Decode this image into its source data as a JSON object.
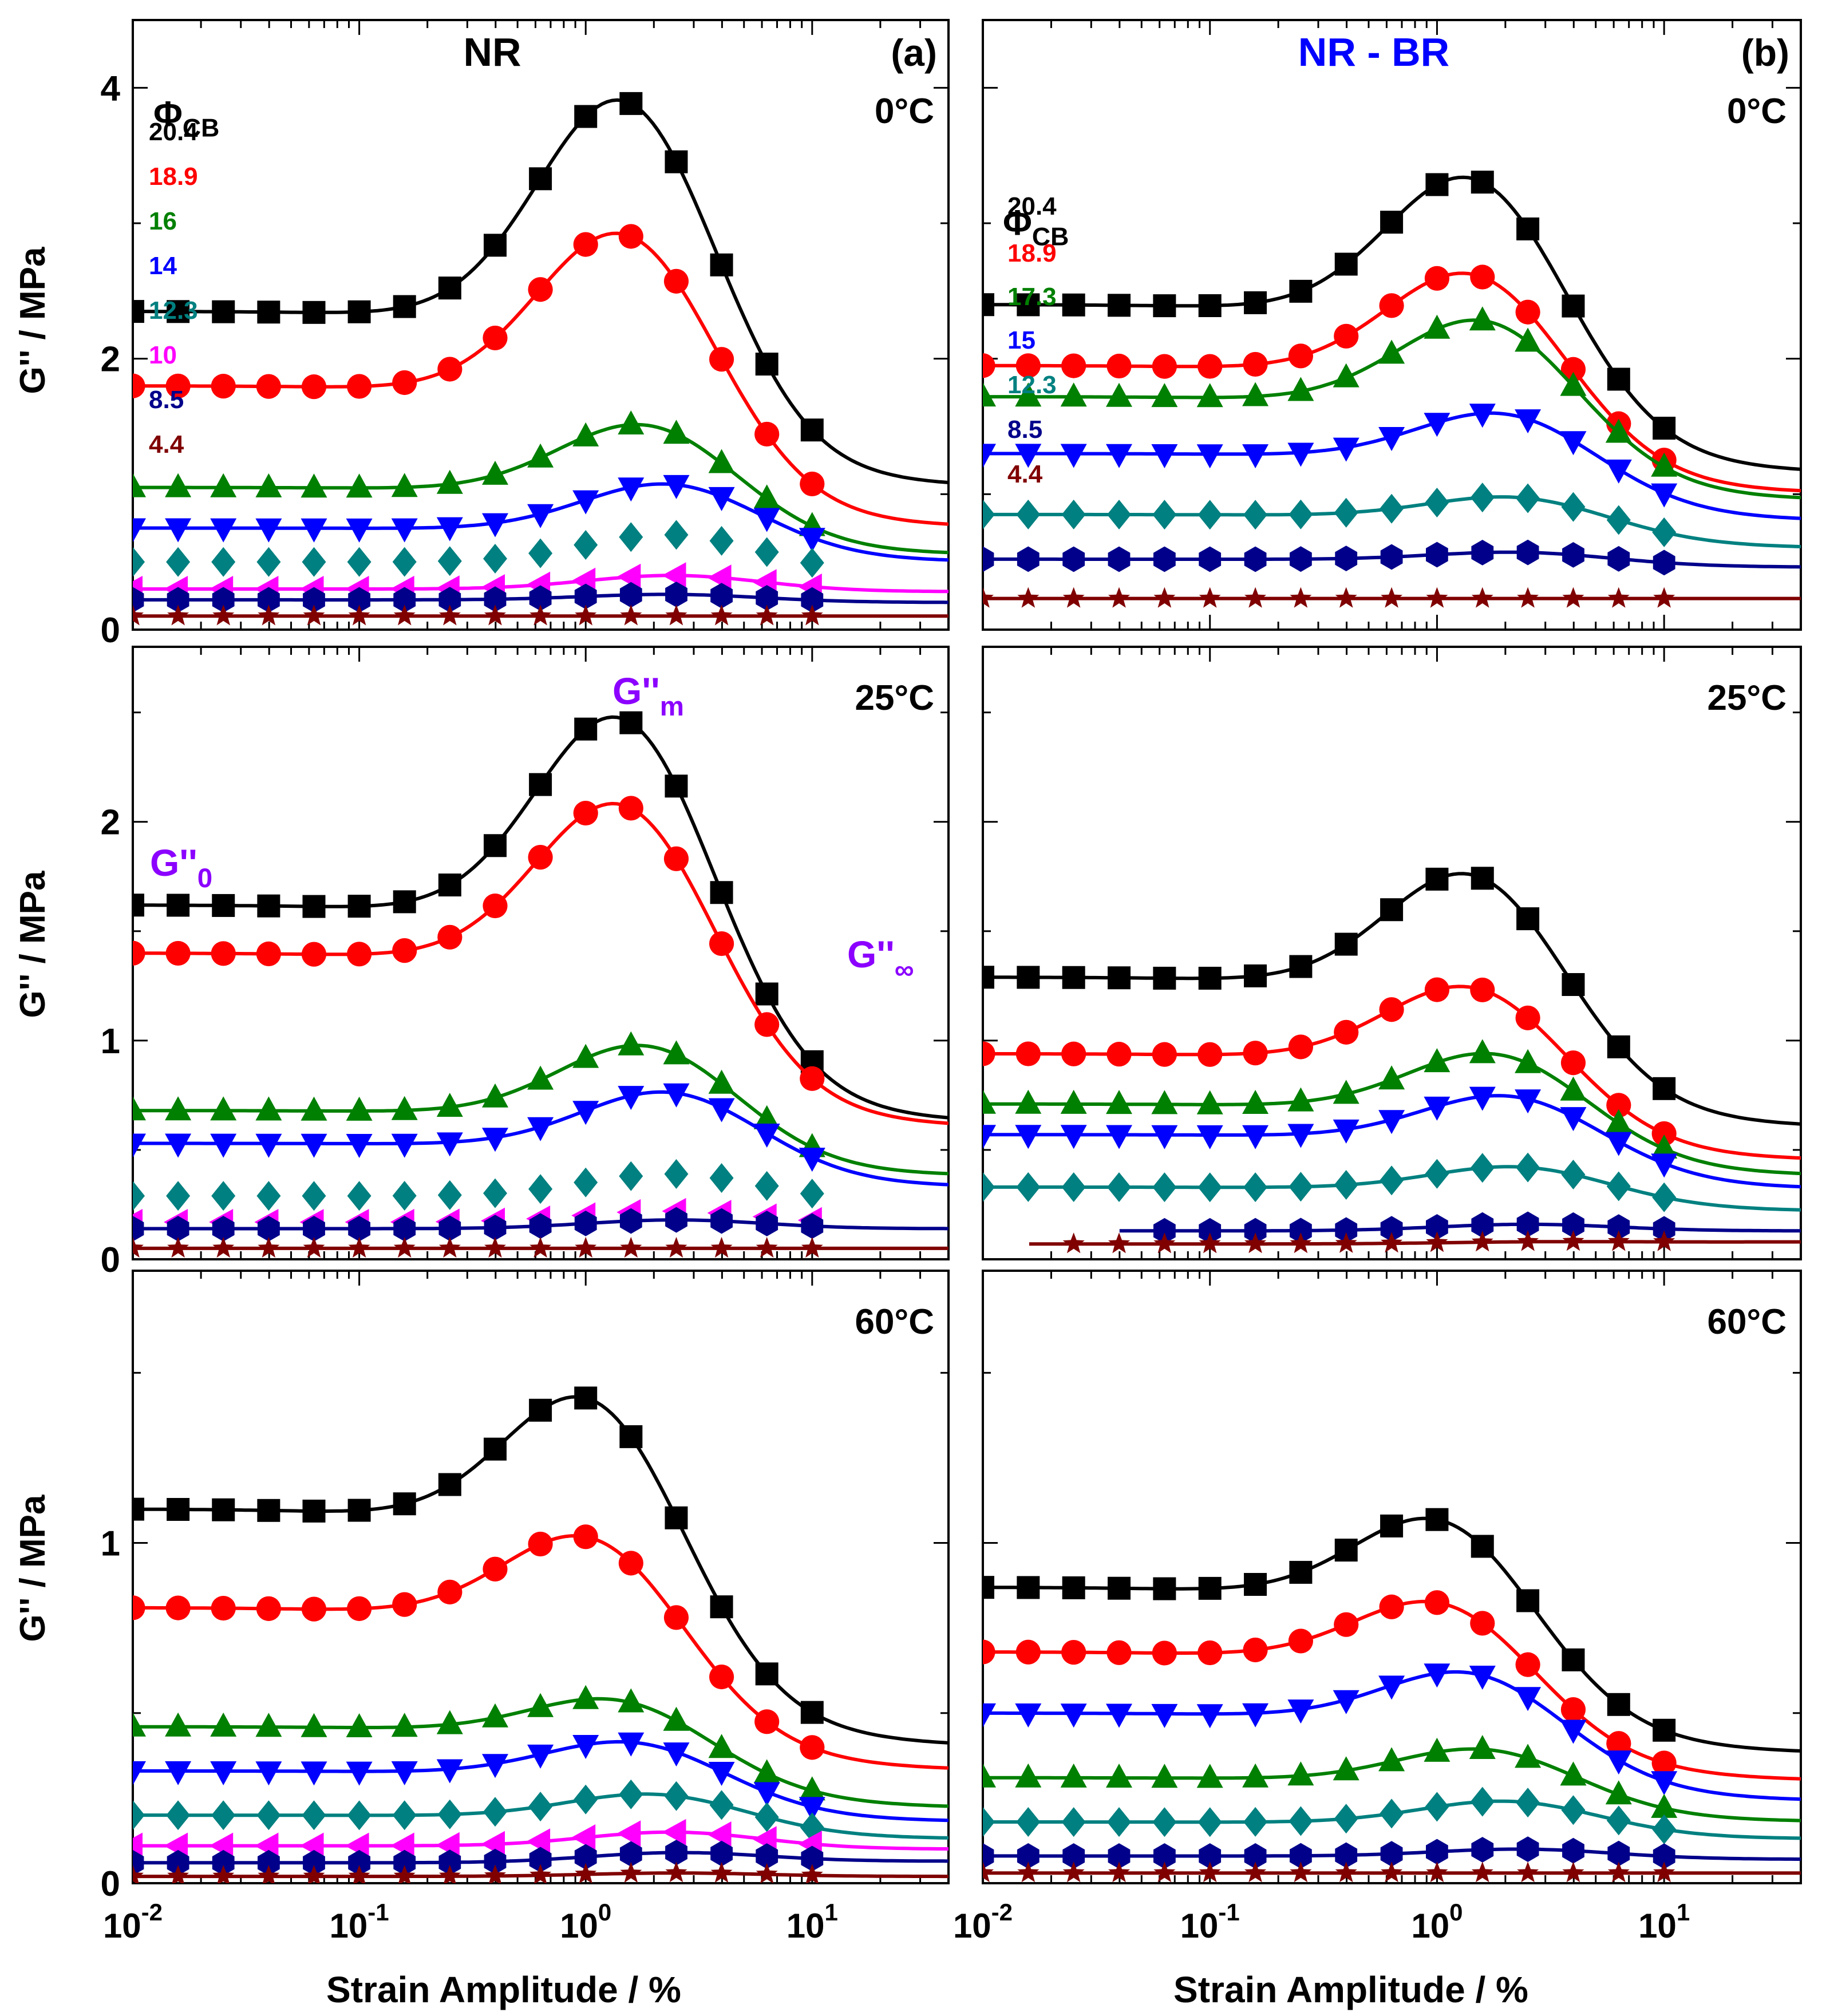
{
  "figure": {
    "y_axis_label": "G'' / MPa",
    "x_axis_label": "Strain Amplitude / %",
    "x_ticks": [
      {
        "value": 0.01,
        "base": "10",
        "exp": "-2"
      },
      {
        "value": 0.1,
        "base": "10",
        "exp": "-1"
      },
      {
        "value": 1,
        "base": "10",
        "exp": "0"
      },
      {
        "value": 10,
        "base": "10",
        "exp": "1"
      }
    ],
    "phi_label": "Φ",
    "phi_sub": "CB"
  },
  "series_styles": {
    "20.4": {
      "color": "#000000",
      "marker": "square"
    },
    "18.9": {
      "color": "#ff0000",
      "marker": "circle"
    },
    "17.3": {
      "color": "#008000",
      "marker": "triangle-up"
    },
    "16": {
      "color": "#008000",
      "marker": "triangle-up"
    },
    "15": {
      "color": "#0000ff",
      "marker": "triangle-down"
    },
    "14": {
      "color": "#0000ff",
      "marker": "triangle-down"
    },
    "12.3": {
      "color": "#008080",
      "marker": "diamond"
    },
    "10": {
      "color": "#ff00ff",
      "marker": "triangle-left"
    },
    "8.5": {
      "color": "#00008b",
      "marker": "hexagon"
    },
    "4.4": {
      "color": "#800000",
      "marker": "star"
    }
  },
  "panels": {
    "nr0": {
      "title": "NR",
      "tag": "(a)",
      "temp": "0°C",
      "ylim": [
        0,
        4.5
      ],
      "yticks": [
        0,
        2,
        4
      ],
      "series": [
        {
          "phi": "20.4",
          "g0": 2.35,
          "gm": 3.88,
          "ginf": 1.05,
          "xp": 1.6
        },
        {
          "phi": "18.9",
          "g0": 1.8,
          "gm": 2.9,
          "ginf": 0.75,
          "xp": 1.6
        },
        {
          "phi": "16",
          "g0": 1.05,
          "gm": 1.5,
          "ginf": 0.55,
          "xp": 2.0
        },
        {
          "phi": "14",
          "g0": 0.75,
          "gm": 1.07,
          "ginf": 0.5,
          "xp": 2.5
        },
        {
          "phi": "12.3",
          "g0": 0.5,
          "gm": 0.7,
          "ginf": 0.4,
          "xp": 2.5,
          "no_line": true
        },
        {
          "phi": "10",
          "g0": 0.3,
          "gm": 0.4,
          "ginf": 0.28,
          "xp": 2.5
        },
        {
          "phi": "8.5",
          "g0": 0.22,
          "gm": 0.26,
          "ginf": 0.2,
          "xp": 2.5
        },
        {
          "phi": "4.4",
          "g0": 0.1,
          "gm": 0.1,
          "ginf": 0.1,
          "xp": 2.5
        }
      ],
      "legend": [
        "20.4",
        "18.9",
        "16",
        "14",
        "12.3",
        "10",
        "8.5",
        "4.4"
      ]
    },
    "nrbr0": {
      "title": "NR - BR",
      "tag": "(b)",
      "temp": "0°C",
      "ylim": [
        0,
        4.5
      ],
      "yticks": [
        0,
        2,
        4
      ],
      "series": [
        {
          "phi": "20.4",
          "g0": 2.4,
          "gm": 3.3,
          "ginf": 1.15,
          "xp": 1.6
        },
        {
          "phi": "18.9",
          "g0": 1.95,
          "gm": 2.6,
          "ginf": 1.0,
          "xp": 1.6
        },
        {
          "phi": "17.3",
          "g0": 1.72,
          "gm": 2.26,
          "ginf": 0.95,
          "xp": 1.8
        },
        {
          "phi": "15",
          "g0": 1.3,
          "gm": 1.58,
          "ginf": 0.8,
          "xp": 2.2
        },
        {
          "phi": "12.3",
          "g0": 0.85,
          "gm": 0.97,
          "ginf": 0.6,
          "xp": 2.5
        },
        {
          "phi": "8.5",
          "g0": 0.52,
          "gm": 0.57,
          "ginf": 0.46,
          "xp": 2.5
        },
        {
          "phi": "4.4",
          "g0": 0.23,
          "gm": 0.23,
          "ginf": 0.23,
          "xp": 2.5
        }
      ],
      "legend": [
        "20.4",
        "18.9",
        "17.3",
        "15",
        "12.3",
        "8.5",
        "4.4"
      ]
    },
    "nr25": {
      "temp": "25°C",
      "ylim": [
        0,
        2.8
      ],
      "yticks": [
        0,
        1,
        2
      ],
      "g0_label": "G''",
      "g0_sub": "0",
      "gm_label": "G''",
      "gm_sub": "m",
      "ginf_label": "G''",
      "ginf_sub": "∞",
      "series": [
        {
          "phi": "20.4",
          "g0": 1.62,
          "gm": 2.45,
          "ginf": 0.62,
          "xp": 1.6
        },
        {
          "phi": "18.9",
          "g0": 1.4,
          "gm": 2.06,
          "ginf": 0.6,
          "xp": 1.6
        },
        {
          "phi": "16",
          "g0": 0.68,
          "gm": 0.97,
          "ginf": 0.38,
          "xp": 2.0
        },
        {
          "phi": "14",
          "g0": 0.53,
          "gm": 0.76,
          "ginf": 0.33,
          "xp": 2.5
        },
        {
          "phi": "12.3",
          "g0": 0.29,
          "gm": 0.39,
          "ginf": 0.26,
          "xp": 2.5,
          "no_line": true
        },
        {
          "phi": "10",
          "g0": 0.17,
          "gm": 0.22,
          "ginf": 0.16,
          "xp": 2.5,
          "no_line": true
        },
        {
          "phi": "8.5",
          "g0": 0.14,
          "gm": 0.18,
          "ginf": 0.14,
          "xp": 2.5
        },
        {
          "phi": "4.4",
          "g0": 0.05,
          "gm": 0.05,
          "ginf": 0.05,
          "xp": 2.5
        }
      ]
    },
    "nrbr25": {
      "temp": "25°C",
      "ylim": [
        0,
        2.8
      ],
      "yticks": [
        0,
        1,
        2
      ],
      "series": [
        {
          "phi": "20.4",
          "g0": 1.29,
          "gm": 1.74,
          "ginf": 0.6,
          "xp": 1.6
        },
        {
          "phi": "18.9",
          "g0": 0.94,
          "gm": 1.23,
          "ginf": 0.45,
          "xp": 1.6
        },
        {
          "phi": "17.3",
          "g0": 0.71,
          "gm": 0.93,
          "ginf": 0.38,
          "xp": 2.0
        },
        {
          "phi": "15",
          "g0": 0.57,
          "gm": 0.74,
          "ginf": 0.32,
          "xp": 2.3
        },
        {
          "phi": "12.3",
          "g0": 0.33,
          "gm": 0.42,
          "ginf": 0.22,
          "xp": 2.5
        },
        {
          "phi": "8.5",
          "g0": 0.13,
          "gm": 0.16,
          "ginf": 0.13,
          "xp": 2.5,
          "xstart": 0.04
        },
        {
          "phi": "4.4",
          "g0": 0.07,
          "gm": 0.08,
          "ginf": 0.08,
          "xp": 2.5,
          "xstart": 0.016,
          "xend": 45
        }
      ]
    },
    "nr60": {
      "temp": "60°C",
      "ylim": [
        0,
        1.8
      ],
      "yticks": [
        0,
        1
      ],
      "series": [
        {
          "phi": "20.4",
          "g0": 1.1,
          "gm": 1.4,
          "ginf": 0.4,
          "xp": 1.2
        },
        {
          "phi": "18.9",
          "g0": 0.81,
          "gm": 1.0,
          "ginf": 0.33,
          "xp": 1.2
        },
        {
          "phi": "16",
          "g0": 0.46,
          "gm": 0.53,
          "ginf": 0.22,
          "xp": 1.6
        },
        {
          "phi": "14",
          "g0": 0.33,
          "gm": 0.41,
          "ginf": 0.18,
          "xp": 1.8
        },
        {
          "phi": "12.3",
          "g0": 0.2,
          "gm": 0.26,
          "ginf": 0.13,
          "xp": 2.2
        },
        {
          "phi": "10",
          "g0": 0.11,
          "gm": 0.15,
          "ginf": 0.1,
          "xp": 2.5
        },
        {
          "phi": "8.5",
          "g0": 0.06,
          "gm": 0.09,
          "ginf": 0.065,
          "xp": 2.5
        },
        {
          "phi": "4.4",
          "g0": 0.02,
          "gm": 0.03,
          "ginf": 0.02,
          "xp": 2.5
        }
      ]
    },
    "nrbr60": {
      "temp": "60°C",
      "ylim": [
        0,
        1.8
      ],
      "yticks": [
        0,
        1
      ],
      "series": [
        {
          "phi": "20.4",
          "g0": 0.87,
          "gm": 1.05,
          "ginf": 0.38,
          "xp": 1.2
        },
        {
          "phi": "18.9",
          "g0": 0.68,
          "gm": 0.81,
          "ginf": 0.3,
          "xp": 1.2
        },
        {
          "phi": "15",
          "g0": 0.5,
          "gm": 0.61,
          "ginf": 0.24,
          "xp": 1.6
        },
        {
          "phi": "17.3",
          "g0": 0.31,
          "gm": 0.39,
          "ginf": 0.18,
          "xp": 1.8
        },
        {
          "phi": "12.3",
          "g0": 0.18,
          "gm": 0.24,
          "ginf": 0.13,
          "xp": 2.2
        },
        {
          "phi": "8.5",
          "g0": 0.08,
          "gm": 0.1,
          "ginf": 0.07,
          "xp": 2.5
        },
        {
          "phi": "4.4",
          "g0": 0.03,
          "gm": 0.03,
          "ginf": 0.03,
          "xp": 2.5
        }
      ]
    }
  },
  "chart_data": [
    {
      "type": "line",
      "panel": "NR 0°C",
      "xscale": "log",
      "xlim": [
        0.01,
        40
      ],
      "ylim": [
        0,
        4.5
      ],
      "xlabel": "Strain Amplitude / %",
      "ylabel": "G'' / MPa",
      "legend_title": "ΦCB",
      "series_names": [
        "20.4",
        "18.9",
        "16",
        "14",
        "12.3",
        "10",
        "8.5",
        "4.4"
      ]
    },
    {
      "type": "line",
      "panel": "NR - BR 0°C",
      "xscale": "log",
      "xlim": [
        0.01,
        40
      ],
      "ylim": [
        0,
        4.5
      ],
      "xlabel": "Strain Amplitude / %",
      "ylabel": "G'' / MPa",
      "legend_title": "ΦCB",
      "series_names": [
        "20.4",
        "18.9",
        "17.3",
        "15",
        "12.3",
        "8.5",
        "4.4"
      ]
    },
    {
      "type": "line",
      "panel": "NR 25°C",
      "xscale": "log",
      "xlim": [
        0.01,
        40
      ],
      "ylim": [
        0,
        2.8
      ]
    },
    {
      "type": "line",
      "panel": "NR - BR 25°C",
      "xscale": "log",
      "xlim": [
        0.01,
        40
      ],
      "ylim": [
        0,
        2.8
      ]
    },
    {
      "type": "line",
      "panel": "NR 60°C",
      "xscale": "log",
      "xlim": [
        0.01,
        40
      ],
      "ylim": [
        0,
        1.8
      ]
    },
    {
      "type": "line",
      "panel": "NR - BR 60°C",
      "xscale": "log",
      "xlim": [
        0.01,
        40
      ],
      "ylim": [
        0,
        1.8
      ]
    }
  ]
}
